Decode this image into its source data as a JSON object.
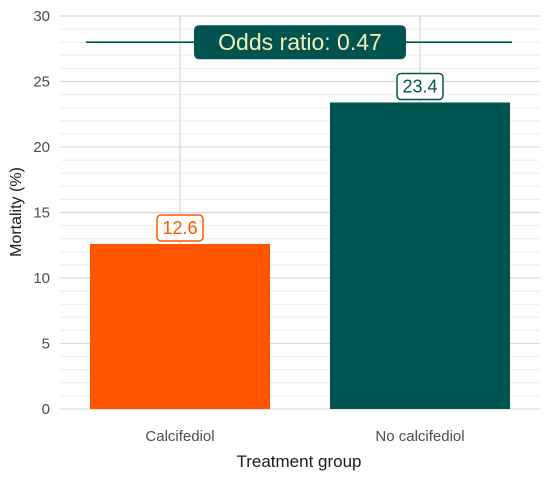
{
  "chart_data": {
    "type": "bar",
    "title": "",
    "xlabel": "Treatment group",
    "ylabel": "Mortality (%)",
    "categories": [
      "Calcifediol",
      "No calcifediol"
    ],
    "values": [
      12.6,
      23.4
    ],
    "data_labels": [
      "12.6",
      "23.4"
    ],
    "bar_colors": [
      "#ff5500",
      "#005550"
    ],
    "ylim": [
      0,
      30
    ],
    "y_ticks": [
      0,
      5,
      10,
      15,
      20,
      25,
      30
    ],
    "y_tick_labels": [
      "0",
      "5",
      "10",
      "15",
      "20",
      "25",
      "30"
    ],
    "minor_gridlines": true,
    "grid": true,
    "annotation": {
      "text": "Odds ratio: 0.47",
      "y": 28,
      "background_color": "#00534e",
      "text_color": "#f5eeb8",
      "line_color": "#00534e"
    }
  }
}
